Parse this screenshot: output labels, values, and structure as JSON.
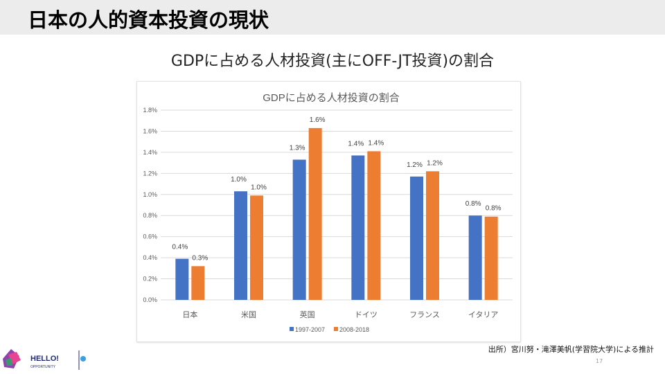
{
  "slide": {
    "title": "日本の人的資本投資の現状",
    "subtitle": "GDPに占める人材投資(主にOFF-JT投資)の割合",
    "source": "出所）宮川努・滝澤美帆(学習院大学)による推計",
    "page": "17",
    "logo_text": "HELLO!",
    "logo_sub": "OPPORTUNITY"
  },
  "chart_data": {
    "type": "bar",
    "title": "GDPに占める人材投資の割合",
    "categories": [
      "日本",
      "米国",
      "英国",
      "ドイツ",
      "フランス",
      "イタリア"
    ],
    "series": [
      {
        "name": "1997-2007",
        "color": "#4472c4",
        "values": [
          0.39,
          1.03,
          1.33,
          1.37,
          1.17,
          0.8
        ],
        "labels": [
          "0.4%",
          "1.0%",
          "1.3%",
          "1.4%",
          "1.2%",
          "0.8%"
        ]
      },
      {
        "name": "2008-2018",
        "color": "#ed7d31",
        "values": [
          0.32,
          0.99,
          1.63,
          1.41,
          1.22,
          0.79
        ],
        "labels": [
          "0.3%",
          "1.0%",
          "1.6%",
          "1.4%",
          "1.2%",
          "0.8%"
        ]
      }
    ],
    "ylim": [
      0,
      1.8
    ],
    "yticks": [
      "0.0%",
      "0.2%",
      "0.4%",
      "0.6%",
      "0.8%",
      "1.0%",
      "1.2%",
      "1.4%",
      "1.6%",
      "1.8%"
    ],
    "grid": true,
    "legend": "bottom"
  }
}
